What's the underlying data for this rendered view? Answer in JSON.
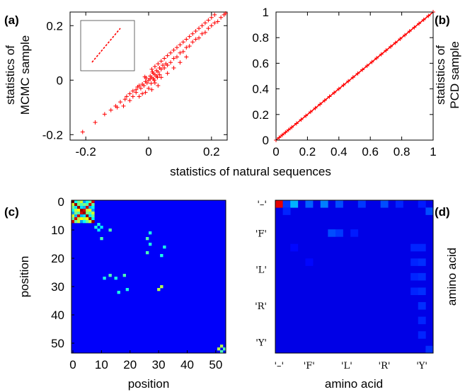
{
  "panel_labels": {
    "a": "(a)",
    "b": "(b)",
    "c": "(c)",
    "d": "(d)"
  },
  "chart_data": [
    {
      "panel": "(a)",
      "type": "scatter",
      "xlabel": "statistics of natural sequences",
      "ylabel": [
        "statistics of",
        "MCMC sample"
      ],
      "xlim": [
        -0.25,
        0.25
      ],
      "ylim": [
        -0.22,
        0.25
      ],
      "xticks": [
        -0.2,
        0,
        0.2
      ],
      "xtick_labels": [
        "-0.2",
        "0",
        "0.2"
      ],
      "yticks": [
        -0.2,
        0,
        0.2
      ],
      "ytick_labels": [
        "-0.2",
        "0",
        "0.2"
      ],
      "marker": "+",
      "color": "#ff0000",
      "inset": true,
      "points": [
        [
          -0.21,
          -0.19
        ],
        [
          -0.17,
          -0.155
        ],
        [
          -0.14,
          -0.125
        ],
        [
          -0.12,
          -0.11
        ],
        [
          -0.105,
          -0.095
        ],
        [
          -0.09,
          -0.08
        ],
        [
          -0.075,
          -0.07
        ],
        [
          -0.06,
          -0.05
        ],
        [
          -0.05,
          -0.04
        ],
        [
          -0.04,
          -0.035
        ],
        [
          -0.035,
          -0.025
        ],
        [
          -0.03,
          -0.02
        ],
        [
          -0.025,
          -0.03
        ],
        [
          -0.02,
          -0.015
        ],
        [
          -0.015,
          -0.02
        ],
        [
          -0.01,
          -0.005
        ],
        [
          -0.005,
          -0.01
        ],
        [
          0.0,
          0.0
        ],
        [
          0.005,
          0.005
        ],
        [
          0.01,
          0.01
        ],
        [
          0.015,
          0.005
        ],
        [
          0.02,
          0.02
        ],
        [
          0.025,
          0.015
        ],
        [
          0.03,
          0.03
        ],
        [
          0.035,
          0.02
        ],
        [
          0.04,
          0.04
        ],
        [
          0.05,
          0.045
        ],
        [
          0.06,
          0.055
        ],
        [
          0.07,
          0.065
        ],
        [
          0.08,
          0.08
        ],
        [
          0.09,
          0.085
        ],
        [
          0.1,
          0.1
        ],
        [
          0.11,
          0.105
        ],
        [
          0.12,
          0.12
        ],
        [
          0.13,
          0.125
        ],
        [
          0.14,
          0.14
        ],
        [
          0.15,
          0.15
        ],
        [
          0.16,
          0.155
        ],
        [
          0.17,
          0.17
        ],
        [
          0.18,
          0.175
        ],
        [
          0.19,
          0.19
        ],
        [
          0.2,
          0.2
        ],
        [
          0.21,
          0.21
        ],
        [
          0.22,
          0.215
        ],
        [
          0.23,
          0.23
        ],
        [
          0.24,
          0.24
        ],
        [
          0.245,
          0.245
        ],
        [
          0.01,
          0.04
        ],
        [
          0.02,
          0.05
        ],
        [
          0.03,
          0.06
        ],
        [
          0.04,
          0.07
        ],
        [
          0.05,
          0.08
        ],
        [
          0.06,
          0.09
        ],
        [
          0.07,
          0.1
        ],
        [
          0.08,
          0.11
        ],
        [
          0.09,
          0.12
        ],
        [
          0.1,
          0.13
        ],
        [
          0.11,
          0.14
        ],
        [
          0.12,
          0.15
        ],
        [
          0.13,
          0.16
        ],
        [
          0.14,
          0.17
        ],
        [
          0.15,
          0.18
        ],
        [
          0.16,
          0.19
        ],
        [
          0.17,
          0.2
        ],
        [
          0.18,
          0.21
        ],
        [
          0.19,
          0.22
        ],
        [
          0.2,
          0.23
        ],
        [
          0.21,
          0.24
        ],
        [
          0.02,
          -0.01
        ],
        [
          0.04,
          0.01
        ],
        [
          0.06,
          0.025
        ],
        [
          0.08,
          0.045
        ],
        [
          0.1,
          0.065
        ],
        [
          0.12,
          0.085
        ],
        [
          0.0,
          -0.03
        ],
        [
          -0.01,
          -0.045
        ],
        [
          -0.02,
          -0.05
        ],
        [
          0.01,
          -0.035
        ],
        [
          0.03,
          -0.02
        ],
        [
          -0.03,
          -0.06
        ],
        [
          -0.05,
          -0.06
        ],
        [
          -0.06,
          -0.075
        ],
        [
          -0.08,
          -0.095
        ],
        [
          -0.1,
          -0.1
        ],
        [
          -0.07,
          -0.06
        ],
        [
          -0.04,
          -0.045
        ],
        [
          0.025,
          0.035
        ],
        [
          0.035,
          0.045
        ],
        [
          0.045,
          0.055
        ],
        [
          0.055,
          0.06
        ],
        [
          0.015,
          0.025
        ],
        [
          0.005,
          0.015
        ],
        [
          -0.008,
          0.008
        ],
        [
          -0.012,
          0.012
        ],
        [
          0.008,
          -0.012
        ],
        [
          0.012,
          0.03
        ],
        [
          0.018,
          0.0
        ],
        [
          0.028,
          0.01
        ]
      ]
    },
    {
      "panel": "(b)",
      "type": "scatter",
      "xlabel": "statistics of natural sequences",
      "ylabel": [
        "statistics of",
        "PCD sample"
      ],
      "xlim": [
        0,
        1
      ],
      "ylim": [
        0,
        1
      ],
      "xticks": [
        0,
        0.2,
        0.4,
        0.6,
        0.8,
        1
      ],
      "xtick_labels": [
        "0",
        "0.2",
        "0.4",
        "0.6",
        "0.8",
        "1"
      ],
      "yticks": [
        0,
        0.2,
        0.4,
        0.6,
        0.8,
        1
      ],
      "ytick_labels": [
        "0",
        "0.2",
        "0.4",
        "0.6",
        "0.8",
        "1"
      ],
      "marker": "+",
      "color": "#ff0000",
      "points": [
        [
          0.0,
          0.0
        ],
        [
          0.02,
          0.02
        ],
        [
          0.04,
          0.04
        ],
        [
          0.06,
          0.06
        ],
        [
          0.08,
          0.08
        ],
        [
          0.1,
          0.1
        ],
        [
          0.13,
          0.13
        ],
        [
          0.16,
          0.16
        ],
        [
          0.19,
          0.19
        ],
        [
          0.22,
          0.22
        ],
        [
          0.25,
          0.25
        ],
        [
          0.28,
          0.28
        ],
        [
          0.31,
          0.31
        ],
        [
          0.34,
          0.34
        ],
        [
          0.37,
          0.37
        ],
        [
          0.4,
          0.4
        ],
        [
          0.43,
          0.43
        ],
        [
          0.46,
          0.46
        ],
        [
          0.49,
          0.49
        ],
        [
          0.52,
          0.52
        ],
        [
          0.55,
          0.55
        ],
        [
          0.58,
          0.58
        ],
        [
          0.61,
          0.61
        ],
        [
          0.64,
          0.64
        ],
        [
          0.67,
          0.67
        ],
        [
          0.7,
          0.7
        ],
        [
          0.73,
          0.73
        ],
        [
          0.76,
          0.76
        ],
        [
          0.79,
          0.79
        ],
        [
          0.82,
          0.82
        ],
        [
          0.85,
          0.85
        ],
        [
          0.88,
          0.88
        ],
        [
          0.91,
          0.91
        ],
        [
          0.94,
          0.94
        ],
        [
          0.97,
          0.97
        ],
        [
          1.0,
          1.0
        ]
      ]
    },
    {
      "panel": "(c)",
      "type": "heatmap",
      "xlabel": "position",
      "ylabel": "position",
      "size": 54,
      "xticks": [
        0,
        10,
        20,
        30,
        40,
        50
      ],
      "xtick_labels": [
        "0",
        "10",
        "20",
        "30",
        "40",
        "50"
      ],
      "yticks": [
        0,
        10,
        20,
        30,
        40,
        50
      ],
      "ytick_labels": [
        "0",
        "10",
        "20",
        "30",
        "40",
        "50"
      ],
      "colormap": "jet",
      "background_value": 0.12,
      "block": {
        "start": 0,
        "end": 7
      },
      "cells": [
        [
          8,
          9,
          0.4
        ],
        [
          9,
          8,
          0.4
        ],
        [
          9,
          10,
          0.35
        ],
        [
          10,
          9,
          0.35
        ],
        [
          13,
          10,
          0.45
        ],
        [
          10,
          13,
          0.45
        ],
        [
          27,
          11,
          0.4
        ],
        [
          11,
          27,
          0.4
        ],
        [
          27,
          15,
          0.4
        ],
        [
          15,
          27,
          0.4
        ],
        [
          32,
          16,
          0.4
        ],
        [
          16,
          32,
          0.4
        ],
        [
          13,
          26,
          0.45
        ],
        [
          26,
          13,
          0.45
        ],
        [
          18,
          26,
          0.45
        ],
        [
          26,
          18,
          0.45
        ],
        [
          19,
          31,
          0.4
        ],
        [
          31,
          19,
          0.4
        ],
        [
          31,
          30,
          0.55
        ],
        [
          30,
          31,
          0.55
        ],
        [
          52,
          51,
          0.55
        ],
        [
          51,
          52,
          0.55
        ],
        [
          53,
          52,
          0.45
        ],
        [
          52,
          53,
          0.45
        ]
      ]
    },
    {
      "panel": "(d)",
      "type": "heatmap",
      "xlabel": "amino acid",
      "ylabel": "amino acid",
      "size": 21,
      "xtick_labels": [
        "'–'",
        "'F'",
        "'L'",
        "'R'",
        "'Y'"
      ],
      "ytick_labels": [
        "'–'",
        "'F'",
        "'L'",
        "'R'",
        "'Y'"
      ],
      "colormap": "jet",
      "background_value": 0.1,
      "cells": [
        [
          0,
          0,
          0.9
        ],
        [
          1,
          0,
          0.18
        ],
        [
          2,
          0,
          0.3
        ],
        [
          4,
          0,
          0.22
        ],
        [
          6,
          0,
          0.25
        ],
        [
          8,
          0,
          0.2
        ],
        [
          11,
          0,
          0.18
        ],
        [
          14,
          0,
          0.2
        ],
        [
          16,
          0,
          0.16
        ],
        [
          19,
          0,
          0.15
        ],
        [
          20,
          1,
          0.2
        ],
        [
          1,
          1,
          0.16
        ],
        [
          20,
          20,
          0.17
        ],
        [
          7,
          4,
          0.2
        ],
        [
          8,
          4,
          0.18
        ],
        [
          10,
          4,
          0.15
        ],
        [
          18,
          6,
          0.16
        ],
        [
          19,
          6,
          0.16
        ],
        [
          18,
          8,
          0.16
        ],
        [
          19,
          8,
          0.17
        ],
        [
          18,
          10,
          0.16
        ],
        [
          19,
          10,
          0.17
        ],
        [
          18,
          12,
          0.16
        ],
        [
          19,
          12,
          0.17
        ],
        [
          19,
          14,
          0.17
        ],
        [
          19,
          16,
          0.16
        ],
        [
          19,
          18,
          0.16
        ],
        [
          2,
          6,
          0.13
        ],
        [
          4,
          8,
          0.13
        ]
      ]
    }
  ]
}
